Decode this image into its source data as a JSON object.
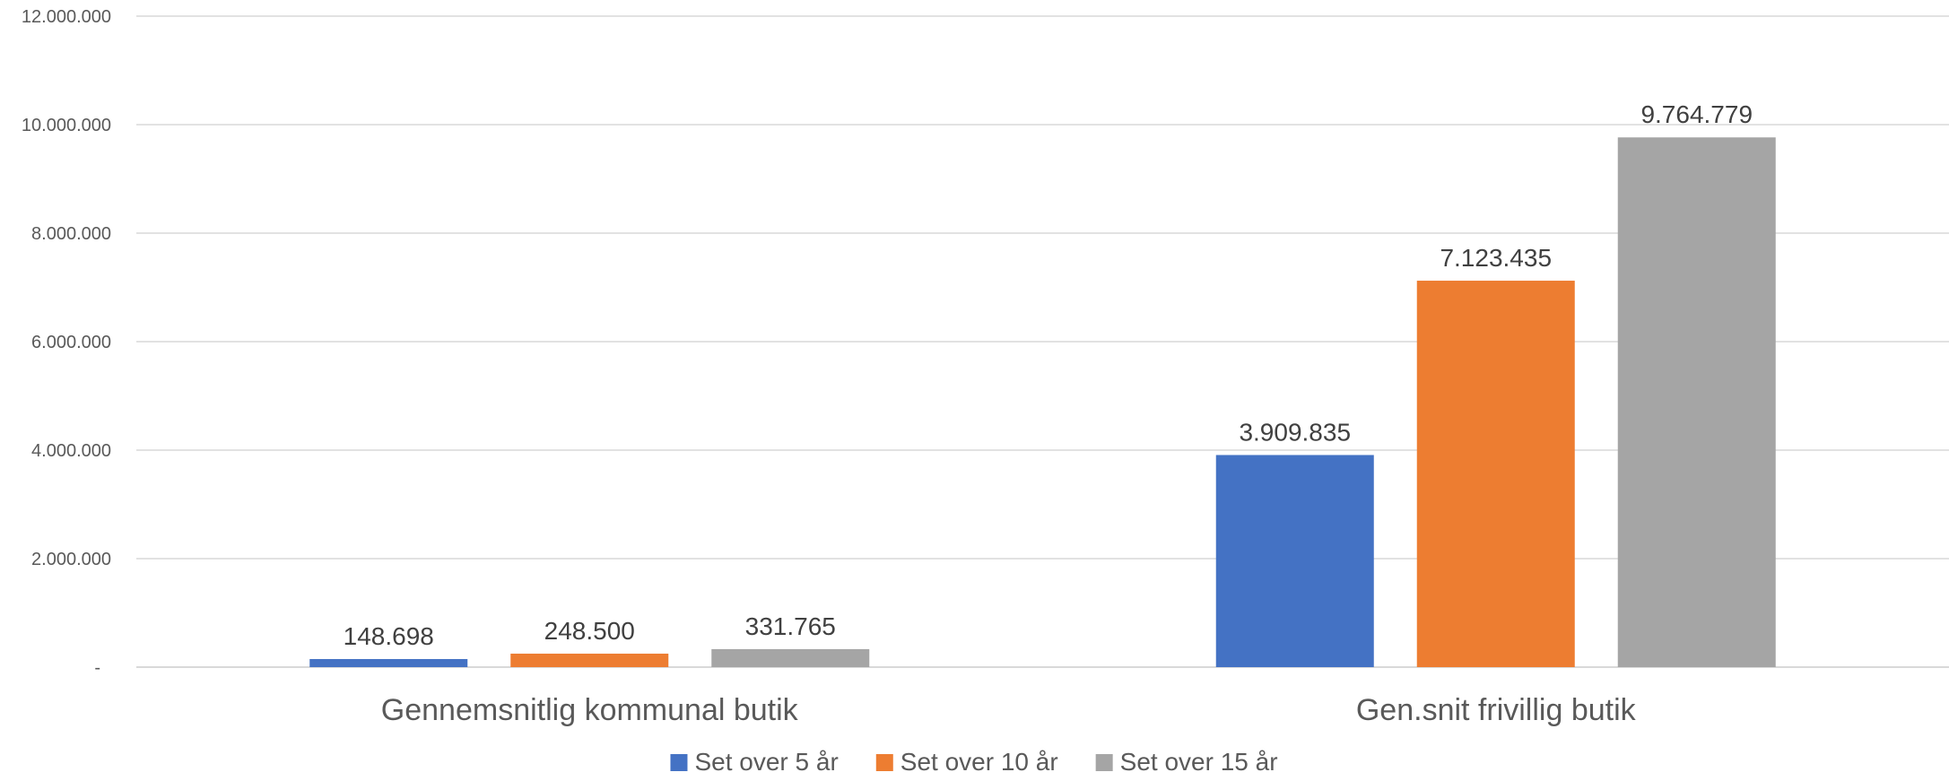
{
  "chart_data": {
    "type": "bar",
    "categories": [
      "Gennemsnitlig kommunal butik",
      "Gen.snit frivillig butik"
    ],
    "series": [
      {
        "name": "Set over 5 år",
        "color": "#4472C4",
        "values": [
          148698,
          3909835
        ],
        "labels": [
          "148.698",
          "3.909.835"
        ]
      },
      {
        "name": "Set over 10 år",
        "color": "#ED7D31",
        "values": [
          248500,
          7123435
        ],
        "labels": [
          "248.500",
          "7.123.435"
        ]
      },
      {
        "name": "Set over 15 år",
        "color": "#A5A5A5",
        "values": [
          331765,
          9764779
        ],
        "labels": [
          "331.765",
          "9.764.779"
        ]
      }
    ],
    "ylim": [
      0,
      12000000
    ],
    "yticks": [
      0,
      2000000,
      4000000,
      6000000,
      8000000,
      10000000,
      12000000
    ],
    "ytick_labels": [
      "-",
      "2.000.000",
      "4.000.000",
      "6.000.000",
      "8.000.000",
      "10.000.000",
      "12.000.000"
    ],
    "title": "",
    "xlabel": "",
    "ylabel": "",
    "grid": true,
    "legend_position": "bottom"
  }
}
